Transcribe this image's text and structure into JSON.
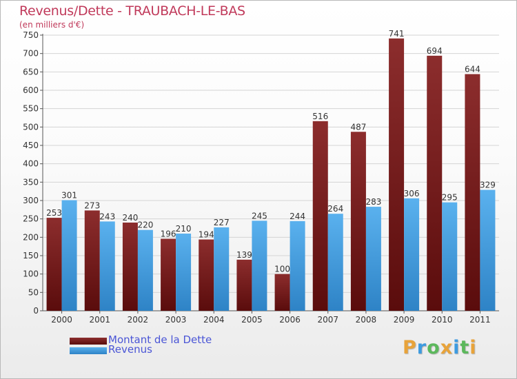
{
  "colors": {
    "title": "#c0395a",
    "axis_text": "#333333",
    "legend_text": "#4a55d6",
    "debt_top": "#8c2d2d",
    "debt_bottom": "#5a0c0c",
    "revenue_top": "#5ab1ee",
    "revenue_bottom": "#2e83c6",
    "grid": "#d4d4d4"
  },
  "chart_data": {
    "type": "bar",
    "title": "Revenus/Dette - TRAUBACH-LE-BAS",
    "subtitle": "(en milliers d'€)",
    "categories": [
      "2000",
      "2001",
      "2002",
      "2003",
      "2004",
      "2005",
      "2006",
      "2007",
      "2008",
      "2009",
      "2010",
      "2011"
    ],
    "series": [
      {
        "name": "Montant de la Dette",
        "values": [
          253,
          273,
          240,
          196,
          194,
          139,
          100,
          516,
          487,
          741,
          694,
          644
        ]
      },
      {
        "name": "Revenus",
        "values": [
          301,
          243,
          220,
          210,
          227,
          245,
          244,
          264,
          283,
          306,
          295,
          329
        ]
      }
    ],
    "yticks": [
      0,
      50,
      100,
      150,
      200,
      250,
      300,
      350,
      400,
      450,
      500,
      550,
      600,
      650,
      700,
      750
    ],
    "ylim": [
      0,
      750
    ],
    "grid": true,
    "legend_position": "bottom-left"
  },
  "brand": {
    "letters": [
      "P",
      "r",
      "o",
      "x",
      "i",
      "t",
      "i"
    ],
    "colors": [
      "#e8a33a",
      "#3d9be0",
      "#5cb85c",
      "#e8a33a",
      "#3d9be0",
      "#5cb85c",
      "#e8a33a"
    ]
  }
}
